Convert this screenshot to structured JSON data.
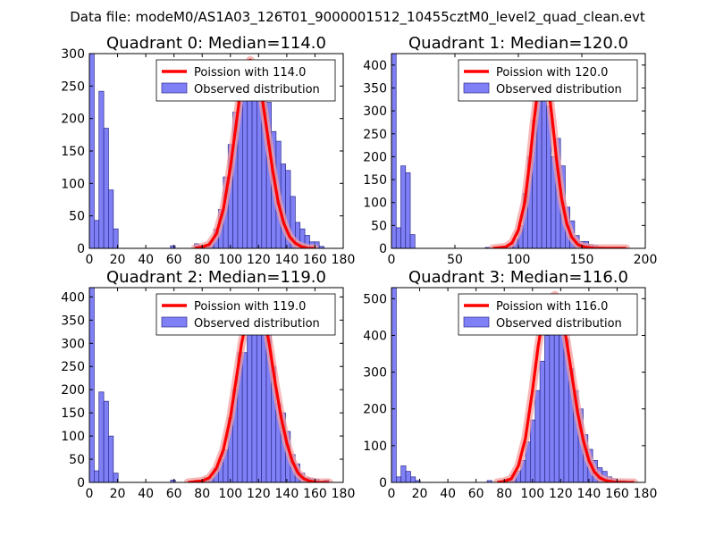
{
  "figure": {
    "suptitle": "Data file: modeM0/AS1A03_126T01_9000001512_10455cztM0_level2_quad_clean.evt"
  },
  "colors": {
    "hist_fill": "#8080f6",
    "hist_edge": "#2a2a8a",
    "fit_line": "#ff0000",
    "fit_highlight": "#f4a0a0",
    "axis": "#000000"
  },
  "chart_data": [
    {
      "type": "bar",
      "title": "Quadrant 0: Median=114.0",
      "median": 114.0,
      "xlim": [
        0,
        180
      ],
      "ylim": [
        0,
        300
      ],
      "xticks": [
        0,
        20,
        40,
        60,
        80,
        100,
        120,
        140,
        160,
        180
      ],
      "yticks": [
        0,
        50,
        100,
        150,
        200,
        250,
        300
      ],
      "bin_width": 3.4,
      "legend": [
        "Poission with 114.0",
        "Observed distribution"
      ],
      "bins": [
        [
          0,
          300
        ],
        [
          3.4,
          43
        ],
        [
          6.8,
          242
        ],
        [
          10.2,
          185
        ],
        [
          13.6,
          90
        ],
        [
          17,
          30
        ],
        [
          57.5,
          4
        ],
        [
          74.5,
          7
        ],
        [
          78,
          4
        ],
        [
          81.4,
          5
        ],
        [
          84.8,
          10
        ],
        [
          88.2,
          30
        ],
        [
          91.6,
          60
        ],
        [
          95,
          110
        ],
        [
          98.4,
          160
        ],
        [
          101.8,
          210
        ],
        [
          105.2,
          230
        ],
        [
          108.6,
          265
        ],
        [
          112,
          250
        ],
        [
          115.4,
          290
        ],
        [
          118.8,
          270
        ],
        [
          122.2,
          250
        ],
        [
          125.6,
          225
        ],
        [
          129,
          180
        ],
        [
          132.4,
          165
        ],
        [
          135.8,
          130
        ],
        [
          139.2,
          120
        ],
        [
          142.6,
          80
        ],
        [
          146,
          40
        ],
        [
          149.4,
          30
        ],
        [
          152.8,
          20
        ],
        [
          156.2,
          10
        ],
        [
          159.6,
          10
        ],
        [
          163,
          3
        ]
      ],
      "curve": [
        [
          75,
          0
        ],
        [
          80,
          2
        ],
        [
          85,
          6
        ],
        [
          90,
          22
        ],
        [
          95,
          60
        ],
        [
          100,
          125
        ],
        [
          104,
          190
        ],
        [
          107,
          240
        ],
        [
          110,
          275
        ],
        [
          114,
          290
        ],
        [
          118,
          280
        ],
        [
          122,
          240
        ],
        [
          126,
          180
        ],
        [
          130,
          120
        ],
        [
          134,
          70
        ],
        [
          138,
          38
        ],
        [
          142,
          18
        ],
        [
          146,
          8
        ],
        [
          150,
          3
        ],
        [
          155,
          0
        ],
        [
          160,
          0
        ]
      ]
    },
    {
      "type": "bar",
      "title": "Quadrant 1: Median=120.0",
      "median": 120.0,
      "xlim": [
        0,
        200
      ],
      "ylim": [
        0,
        425
      ],
      "xticks": [
        0,
        50,
        100,
        150,
        200
      ],
      "yticks": [
        0,
        50,
        100,
        150,
        200,
        250,
        300,
        350,
        400
      ],
      "bin_width": 3.7,
      "legend": [
        "Poission with 120.0",
        "Observed distribution"
      ],
      "bins": [
        [
          0,
          425
        ],
        [
          3.7,
          45
        ],
        [
          7.4,
          180
        ],
        [
          11.1,
          165
        ],
        [
          14.8,
          30
        ],
        [
          74,
          2
        ],
        [
          85,
          4
        ],
        [
          92,
          8
        ],
        [
          96.2,
          20
        ],
        [
          99.9,
          50
        ],
        [
          103.6,
          120
        ],
        [
          107.3,
          200
        ],
        [
          111,
          280
        ],
        [
          114.7,
          330
        ],
        [
          118.4,
          370
        ],
        [
          122.1,
          310
        ],
        [
          125.8,
          200
        ],
        [
          129.5,
          240
        ],
        [
          133.2,
          180
        ],
        [
          136.9,
          90
        ],
        [
          140.6,
          60
        ],
        [
          144.3,
          28
        ],
        [
          148,
          15
        ],
        [
          151.7,
          15
        ],
        [
          155.4,
          8
        ],
        [
          159.1,
          6
        ],
        [
          162.8,
          3
        ]
      ],
      "curve": [
        [
          80,
          0
        ],
        [
          90,
          3
        ],
        [
          95,
          12
        ],
        [
          100,
          40
        ],
        [
          105,
          100
        ],
        [
          109,
          190
        ],
        [
          112,
          270
        ],
        [
          115,
          340
        ],
        [
          118,
          380
        ],
        [
          121,
          385
        ],
        [
          124,
          345
        ],
        [
          127,
          275
        ],
        [
          130,
          195
        ],
        [
          134,
          110
        ],
        [
          138,
          55
        ],
        [
          142,
          25
        ],
        [
          147,
          8
        ],
        [
          152,
          3
        ],
        [
          160,
          0
        ],
        [
          170,
          0
        ],
        [
          185,
          0
        ]
      ]
    },
    {
      "type": "bar",
      "title": "Quadrant 2: Median=119.0",
      "median": 119.0,
      "xlim": [
        0,
        180
      ],
      "ylim": [
        0,
        420
      ],
      "xticks": [
        0,
        20,
        40,
        60,
        80,
        100,
        120,
        140,
        160,
        180
      ],
      "yticks": [
        0,
        50,
        100,
        150,
        200,
        250,
        300,
        350,
        400
      ],
      "bin_width": 3.4,
      "legend": [
        "Poission with 119.0",
        "Observed distribution"
      ],
      "bins": [
        [
          0,
          420
        ],
        [
          3.4,
          25
        ],
        [
          6.8,
          195
        ],
        [
          10.2,
          175
        ],
        [
          13.6,
          100
        ],
        [
          17,
          20
        ],
        [
          57.6,
          5
        ],
        [
          74.5,
          5
        ],
        [
          81.3,
          10
        ],
        [
          84.7,
          10
        ],
        [
          88.1,
          30
        ],
        [
          91.5,
          50
        ],
        [
          94.9,
          70
        ],
        [
          98.3,
          140
        ],
        [
          101.7,
          200
        ],
        [
          105.1,
          280
        ],
        [
          108.5,
          280
        ],
        [
          111.9,
          320
        ],
        [
          115.3,
          340
        ],
        [
          118.7,
          360
        ],
        [
          122.1,
          340
        ],
        [
          125.5,
          350
        ],
        [
          128.9,
          250
        ],
        [
          132.3,
          170
        ],
        [
          135.7,
          150
        ],
        [
          139.1,
          110
        ],
        [
          142.5,
          60
        ],
        [
          145.9,
          40
        ],
        [
          149.3,
          20
        ],
        [
          152.7,
          10
        ],
        [
          156.1,
          8
        ],
        [
          159.5,
          7
        ],
        [
          166.3,
          5
        ]
      ],
      "curve": [
        [
          70,
          0
        ],
        [
          80,
          3
        ],
        [
          85,
          10
        ],
        [
          90,
          30
        ],
        [
          95,
          70
        ],
        [
          100,
          140
        ],
        [
          104,
          220
        ],
        [
          108,
          300
        ],
        [
          112,
          360
        ],
        [
          116,
          390
        ],
        [
          120,
          395
        ],
        [
          124,
          360
        ],
        [
          128,
          290
        ],
        [
          132,
          210
        ],
        [
          136,
          140
        ],
        [
          140,
          85
        ],
        [
          144,
          45
        ],
        [
          148,
          20
        ],
        [
          152,
          8
        ],
        [
          156,
          3
        ],
        [
          162,
          0
        ],
        [
          170,
          0
        ]
      ]
    },
    {
      "type": "bar",
      "title": "Quadrant 3: Median=116.0",
      "median": 116.0,
      "xlim": [
        0,
        180
      ],
      "ylim": [
        0,
        530
      ],
      "xticks": [
        0,
        20,
        40,
        60,
        80,
        100,
        120,
        140,
        160,
        180
      ],
      "yticks": [
        0,
        100,
        200,
        300,
        400,
        500
      ],
      "bin_width": 3.4,
      "legend": [
        "Poission with 116.0",
        "Observed distribution"
      ],
      "bins": [
        [
          0,
          530
        ],
        [
          3.4,
          15
        ],
        [
          6.8,
          45
        ],
        [
          10.2,
          30
        ],
        [
          13.6,
          15
        ],
        [
          17,
          5
        ],
        [
          67.9,
          5
        ],
        [
          81.5,
          10
        ],
        [
          84.9,
          20
        ],
        [
          88.3,
          30
        ],
        [
          91.7,
          60
        ],
        [
          95.1,
          110
        ],
        [
          98.5,
          170
        ],
        [
          101.9,
          250
        ],
        [
          105.3,
          330
        ],
        [
          108.7,
          400
        ],
        [
          112.1,
          425
        ],
        [
          115.5,
          470
        ],
        [
          118.9,
          490
        ],
        [
          122.3,
          390
        ],
        [
          125.7,
          310
        ],
        [
          129.1,
          250
        ],
        [
          132.5,
          200
        ],
        [
          135.9,
          130
        ],
        [
          139.3,
          90
        ],
        [
          142.7,
          60
        ],
        [
          146.1,
          40
        ],
        [
          149.5,
          30
        ],
        [
          152.9,
          15
        ],
        [
          156.3,
          10
        ],
        [
          159.7,
          5
        ],
        [
          163.1,
          5
        ]
      ],
      "curve": [
        [
          75,
          0
        ],
        [
          80,
          3
        ],
        [
          85,
          10
        ],
        [
          90,
          45
        ],
        [
          95,
          120
        ],
        [
          100,
          250
        ],
        [
          104,
          370
        ],
        [
          108,
          460
        ],
        [
          112,
          500
        ],
        [
          116,
          510
        ],
        [
          120,
          470
        ],
        [
          124,
          390
        ],
        [
          128,
          290
        ],
        [
          132,
          190
        ],
        [
          136,
          115
        ],
        [
          140,
          60
        ],
        [
          144,
          28
        ],
        [
          148,
          12
        ],
        [
          152,
          5
        ],
        [
          158,
          1
        ],
        [
          165,
          0
        ],
        [
          172,
          0
        ]
      ]
    }
  ]
}
